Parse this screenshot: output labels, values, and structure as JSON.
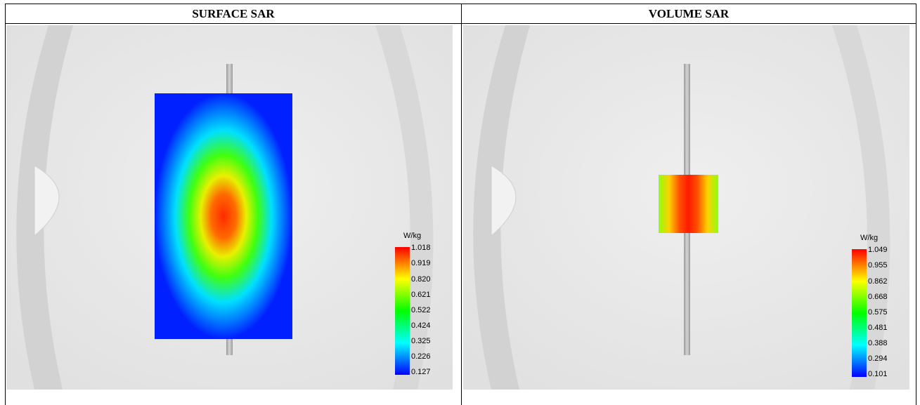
{
  "headers": {
    "left": "SURFACE SAR",
    "right": "VOLUME SAR"
  },
  "colors": {
    "scale": [
      "#0000ff",
      "#00ffff",
      "#00ff00",
      "#ffff00",
      "#ff0000"
    ],
    "background": "#e4e4e4",
    "rod": "#b4b4b4"
  },
  "surface": {
    "legend": {
      "unit": "W/kg",
      "ticks": [
        "1.018",
        "0.919",
        "0.820",
        "0.621",
        "0.522",
        "0.424",
        "0.325",
        "0.226",
        "0.127"
      ]
    }
  },
  "volume": {
    "legend": {
      "unit": "W/kg",
      "ticks": [
        "1.049",
        "0.955",
        "0.862",
        "0.668",
        "0.575",
        "0.481",
        "0.388",
        "0.294",
        "0.101"
      ]
    }
  }
}
